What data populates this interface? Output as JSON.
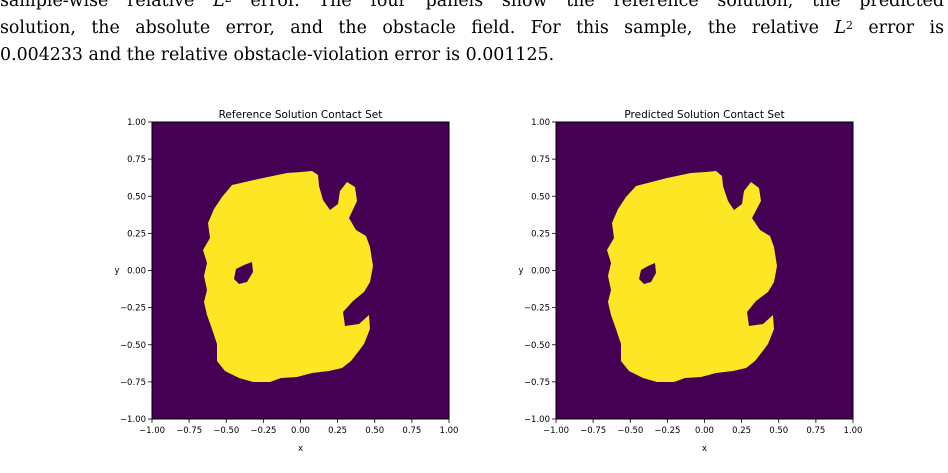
{
  "caption": {
    "line1": {
      "pre": "sample-wise relative ",
      "L": "L",
      "exp": "2",
      "post": " error. The four panels show the reference solution, the predicted"
    },
    "line2": {
      "pre": "solution, the absolute error, and the obstacle field. For this sample, the relative ",
      "L": "L",
      "exp": "2",
      "post": " error is"
    },
    "line3": "0.004233 and the relative obstacle-violation error is 0.001125."
  },
  "chart_data": [
    {
      "type": "heatmap",
      "title": "Reference Solution Contact Set",
      "xlabel": "x",
      "ylabel": "y",
      "xlim": [
        -1.0,
        1.0
      ],
      "ylim": [
        -1.0,
        1.0
      ],
      "xticks": [
        "−1.00",
        "−0.75",
        "−0.50",
        "−0.25",
        "0.00",
        "0.25",
        "0.50",
        "0.75",
        "1.00"
      ],
      "yticks": [
        "1.00",
        "0.75",
        "0.50",
        "0.25",
        "0.00",
        "−0.25",
        "−0.50",
        "−0.75",
        "−1.00"
      ],
      "colors": {
        "background": "#440154",
        "contact": "#fde725"
      },
      "values": "binary contact mask (1 = contact set, 0 = no contact)"
    },
    {
      "type": "heatmap",
      "title": "Predicted Solution Contact Set",
      "xlabel": "x",
      "ylabel": "y",
      "xlim": [
        -1.0,
        1.0
      ],
      "ylim": [
        -1.0,
        1.0
      ],
      "xticks": [
        "−1.00",
        "−0.75",
        "−0.50",
        "−0.25",
        "0.00",
        "0.25",
        "0.50",
        "0.75",
        "1.00"
      ],
      "yticks": [
        "1.00",
        "0.75",
        "0.50",
        "0.25",
        "0.00",
        "−0.25",
        "−0.50",
        "−0.75",
        "−1.00"
      ],
      "colors": {
        "background": "#440154",
        "contact": "#fde725"
      },
      "values": "binary contact mask (1 = contact set, 0 = no contact)"
    }
  ]
}
